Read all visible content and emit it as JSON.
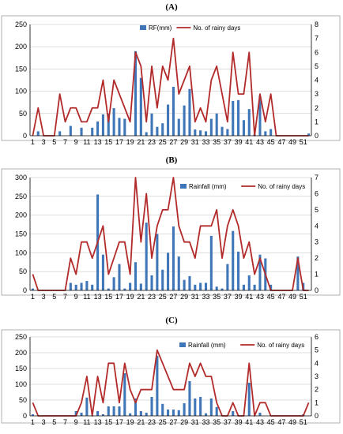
{
  "chart_data": [
    {
      "type": "bar",
      "panel_label": "(A)",
      "bar_series_name": "RF(mm)",
      "line_series_name": "No. of rainy days",
      "bar_color": "#3f76b8",
      "line_color": "#b22a2a",
      "ylim_left": [
        0,
        250
      ],
      "ylim_right": [
        0,
        8
      ],
      "yticks_left": [
        "0",
        "50",
        "100",
        "150",
        "200",
        "250"
      ],
      "yticks_right": [
        "0",
        "1",
        "2",
        "3",
        "4",
        "5",
        "6",
        "7",
        "8"
      ],
      "xticks": [
        "1",
        "3",
        "5",
        "7",
        "9",
        "11",
        "13",
        "15",
        "17",
        "19",
        "21",
        "23",
        "25",
        "27",
        "29",
        "31",
        "33",
        "35",
        "37",
        "39",
        "41",
        "43",
        "45",
        "47",
        "49",
        "51"
      ],
      "grid": true,
      "legend": "top-right",
      "weeks": [
        1,
        2,
        3,
        4,
        5,
        6,
        7,
        8,
        9,
        10,
        11,
        12,
        13,
        14,
        15,
        16,
        17,
        18,
        19,
        20,
        21,
        22,
        23,
        24,
        25,
        26,
        27,
        28,
        29,
        30,
        31,
        32,
        33,
        34,
        35,
        36,
        37,
        38,
        39,
        40,
        41,
        42,
        43,
        44,
        45,
        46,
        47,
        48,
        49,
        50,
        51,
        52
      ],
      "bar_values": [
        0,
        10,
        0,
        0,
        0,
        10,
        0,
        22,
        0,
        18,
        0,
        18,
        32,
        48,
        50,
        62,
        40,
        38,
        0,
        190,
        130,
        8,
        50,
        20,
        28,
        70,
        110,
        38,
        68,
        105,
        14,
        12,
        10,
        38,
        50,
        20,
        15,
        78,
        80,
        35,
        60,
        3,
        90,
        10,
        15,
        0,
        0,
        0,
        0,
        0,
        0,
        5
      ],
      "line_values": [
        0,
        2,
        0,
        0,
        0,
        3,
        1,
        2,
        2,
        1,
        1,
        2,
        2,
        4,
        1,
        4,
        3,
        2,
        1,
        6,
        5,
        1,
        5,
        2,
        5,
        4,
        7,
        3,
        4,
        5,
        1,
        2,
        1,
        4,
        5,
        3,
        1,
        6,
        3,
        3,
        6,
        0,
        3,
        1,
        3,
        0,
        0,
        0,
        0,
        0,
        0,
        0
      ]
    },
    {
      "type": "bar",
      "panel_label": "(B)",
      "bar_series_name": "Rainfall (mm)",
      "line_series_name": "No. of rainy days",
      "bar_color": "#3f76b8",
      "line_color": "#b22a2a",
      "ylim_left": [
        0,
        300
      ],
      "ylim_right": [
        0,
        7
      ],
      "yticks_left": [
        "0",
        "50",
        "100",
        "150",
        "200",
        "250",
        "300"
      ],
      "yticks_right": [
        "0",
        "1",
        "2",
        "3",
        "4",
        "5",
        "6",
        "7"
      ],
      "xticks": [
        "1",
        "3",
        "5",
        "7",
        "9",
        "11",
        "13",
        "15",
        "17",
        "19",
        "21",
        "23",
        "25",
        "27",
        "29",
        "31",
        "33",
        "35",
        "37",
        "39",
        "41",
        "43",
        "45",
        "47",
        "49",
        "51"
      ],
      "grid": true,
      "legend": "top-right",
      "weeks": [
        1,
        2,
        3,
        4,
        5,
        6,
        7,
        8,
        9,
        10,
        11,
        12,
        13,
        14,
        15,
        16,
        17,
        18,
        19,
        20,
        21,
        22,
        23,
        24,
        25,
        26,
        27,
        28,
        29,
        30,
        31,
        32,
        33,
        34,
        35,
        36,
        37,
        38,
        39,
        40,
        41,
        42,
        43,
        44,
        45,
        46,
        47,
        48,
        49,
        50,
        51,
        52
      ],
      "bar_values": [
        5,
        0,
        0,
        0,
        0,
        0,
        0,
        20,
        15,
        20,
        25,
        15,
        255,
        95,
        5,
        35,
        70,
        5,
        20,
        75,
        18,
        180,
        40,
        150,
        55,
        100,
        170,
        90,
        28,
        38,
        15,
        20,
        20,
        145,
        10,
        5,
        70,
        158,
        103,
        15,
        40,
        15,
        95,
        85,
        15,
        0,
        0,
        0,
        0,
        90,
        20,
        0
      ],
      "line_values": [
        1,
        0,
        0,
        0,
        0,
        0,
        0,
        2,
        1,
        3,
        3,
        2,
        3,
        4,
        1,
        2,
        3,
        3,
        1,
        7,
        3,
        6,
        2,
        4,
        5,
        5,
        7,
        4,
        3,
        3,
        2,
        4,
        4,
        4,
        5,
        2,
        4,
        5,
        4,
        2,
        3,
        1,
        2,
        1,
        0,
        0,
        0,
        0,
        0,
        2,
        0,
        0
      ]
    },
    {
      "type": "bar",
      "panel_label": "(C)",
      "bar_series_name": "Rainfall (mm)",
      "line_series_name": "No. of rainy days",
      "bar_color": "#3f76b8",
      "line_color": "#b22a2a",
      "ylim_left": [
        0,
        250
      ],
      "ylim_right": [
        0,
        6
      ],
      "yticks_left": [
        "0",
        "50",
        "100",
        "150",
        "200",
        "250"
      ],
      "yticks_right": [
        "0",
        "1",
        "2",
        "3",
        "4",
        "5",
        "6"
      ],
      "xticks": [
        "1",
        "3",
        "5",
        "7",
        "9",
        "11",
        "13",
        "15",
        "17",
        "19",
        "21",
        "23",
        "25",
        "27",
        "29",
        "31",
        "33",
        "35",
        "37",
        "39",
        "41",
        "43",
        "45",
        "47",
        "49",
        "51"
      ],
      "grid": true,
      "legend": "top-right",
      "weeks": [
        1,
        2,
        3,
        4,
        5,
        6,
        7,
        8,
        9,
        10,
        11,
        12,
        13,
        14,
        15,
        16,
        17,
        18,
        19,
        20,
        21,
        22,
        23,
        24,
        25,
        26,
        27,
        28,
        29,
        30,
        31,
        32,
        33,
        34,
        35,
        36,
        37,
        38,
        39,
        40,
        41,
        42,
        43,
        44,
        45,
        46,
        47,
        48,
        49,
        50,
        51,
        52
      ],
      "bar_values": [
        5,
        0,
        0,
        0,
        0,
        0,
        0,
        0,
        15,
        10,
        58,
        0,
        15,
        5,
        30,
        30,
        30,
        135,
        8,
        55,
        15,
        10,
        60,
        190,
        38,
        20,
        20,
        18,
        40,
        110,
        55,
        60,
        8,
        55,
        28,
        2,
        0,
        15,
        2,
        0,
        105,
        0,
        10,
        0,
        0,
        0,
        0,
        0,
        0,
        0,
        5,
        0
      ],
      "line_values": [
        1,
        0,
        0,
        0,
        0,
        0,
        0,
        0,
        0,
        1,
        3,
        0,
        3,
        1,
        4,
        4,
        1,
        4,
        2,
        1,
        2,
        2,
        2,
        5,
        4,
        3,
        2,
        2,
        2,
        4,
        3,
        4,
        3,
        3,
        1,
        0,
        0,
        1,
        0,
        0,
        4,
        0,
        1,
        1,
        0,
        0,
        0,
        0,
        0,
        0,
        0,
        1
      ]
    }
  ]
}
